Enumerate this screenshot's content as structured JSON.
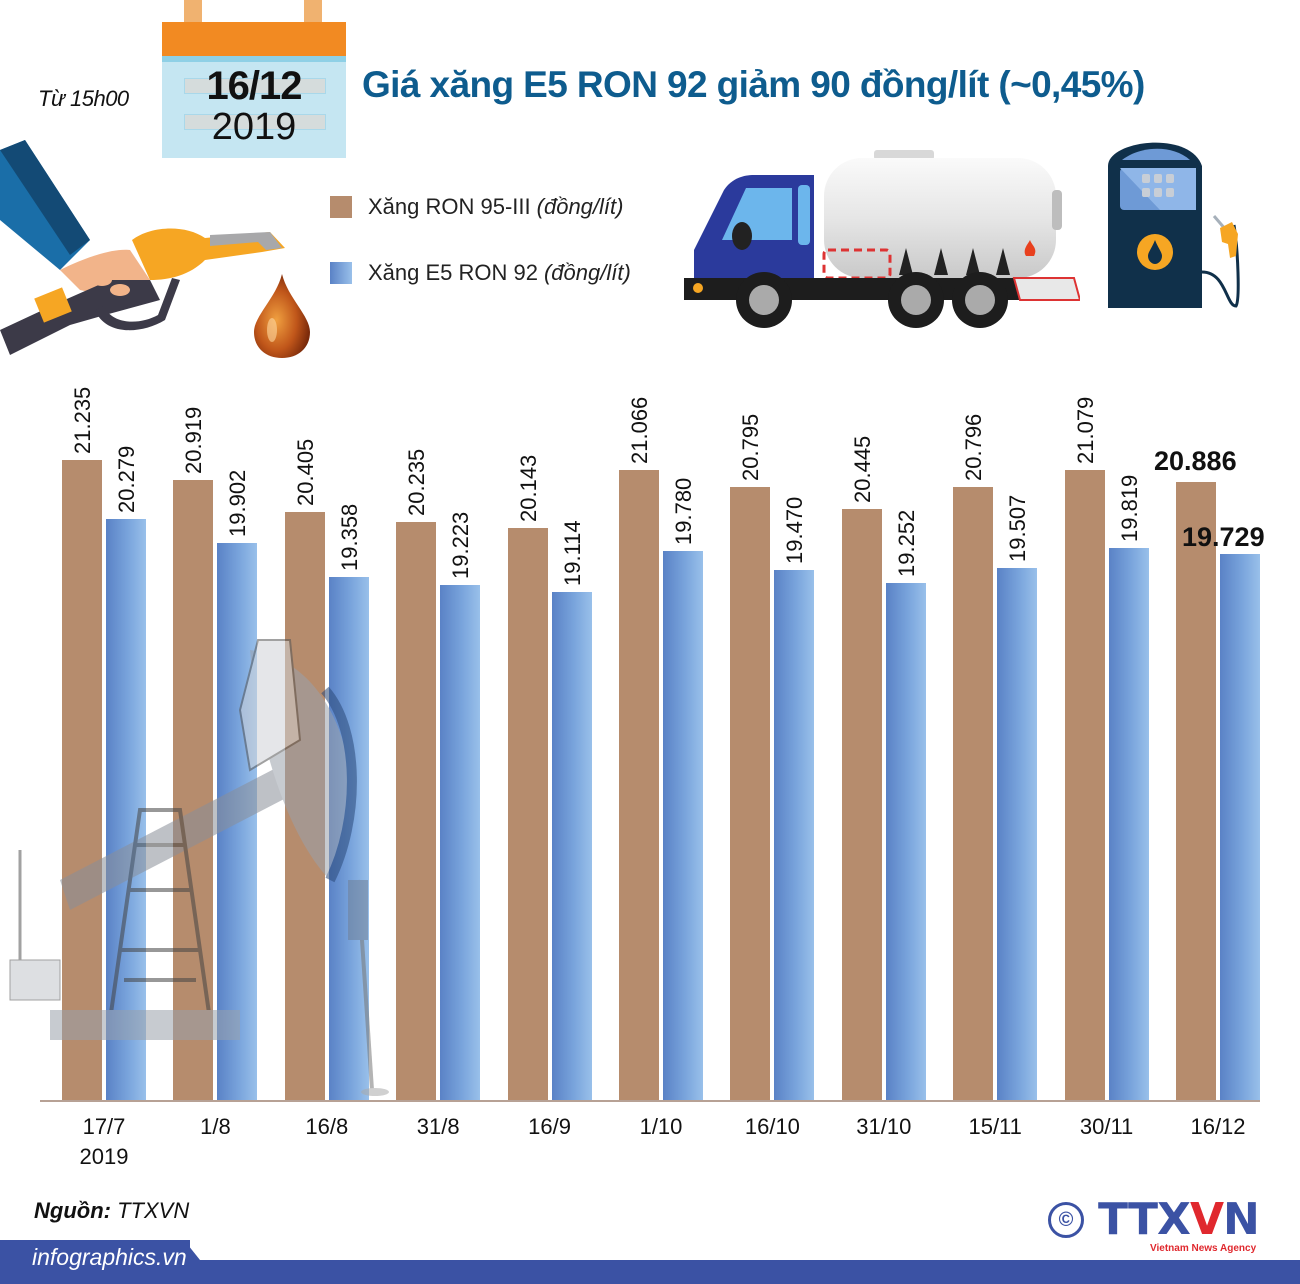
{
  "header": {
    "from_time": "Từ 15h00",
    "calendar_day": "16/12",
    "calendar_year": "2019",
    "title": "Giá xăng E5 RON 92 giảm 90 đồng/lít (~0,45%)"
  },
  "legend": {
    "items": [
      {
        "label": "Xăng RON 95-III",
        "unit": "(đồng/lít)",
        "color": "#b68c6d"
      },
      {
        "label": "Xăng E5 RON 92",
        "unit": "(đồng/lít)",
        "color": "#79a4dc"
      }
    ]
  },
  "icons": {
    "hand_nozzle": "fuel-nozzle-hand-icon",
    "drop": "oil-drop-icon",
    "truck": "tanker-truck-icon",
    "pump": "gas-pump-icon",
    "pumpjack": "oil-pumpjack-icon"
  },
  "chart_data": {
    "type": "bar",
    "title": "Giá xăng E5 RON 92 giảm 90 đồng/lít (~0,45%)",
    "xlabel": "",
    "ylabel": "đồng/lít",
    "categories": [
      "17/7 2019",
      "1/8",
      "16/8",
      "31/8",
      "16/9",
      "1/10",
      "16/10",
      "31/10",
      "15/11",
      "30/11",
      "16/12"
    ],
    "category_lines": [
      [
        "17/7",
        "2019"
      ],
      [
        "1/8"
      ],
      [
        "16/8"
      ],
      [
        "31/8"
      ],
      [
        "16/9"
      ],
      [
        "1/10"
      ],
      [
        "16/10"
      ],
      [
        "31/10"
      ],
      [
        "15/11"
      ],
      [
        "30/11"
      ],
      [
        "16/12"
      ]
    ],
    "series": [
      {
        "name": "Xăng RON 95-III (đồng/lít)",
        "color": "#b68c6d",
        "values": [
          21235,
          20919,
          20405,
          20235,
          20143,
          21066,
          20795,
          20445,
          20796,
          21079,
          20886
        ],
        "labels": [
          "21.235",
          "20.919",
          "20.405",
          "20.235",
          "20.143",
          "21.066",
          "20.795",
          "20.445",
          "20.796",
          "21.079",
          "20.886"
        ]
      },
      {
        "name": "Xăng E5 RON 92 (đồng/lít)",
        "color": "#79a4dc",
        "values": [
          20279,
          19902,
          19358,
          19223,
          19114,
          19780,
          19470,
          19252,
          19507,
          19819,
          19729
        ],
        "labels": [
          "20.279",
          "19.902",
          "19.358",
          "19.223",
          "19.114",
          "19.780",
          "19.470",
          "19.252",
          "19.507",
          "19.819",
          "19.729"
        ]
      }
    ],
    "axis_base": 10960,
    "grid": false,
    "legend_position": "top"
  },
  "footer": {
    "source_label": "Nguồn:",
    "source_value": "TTXVN",
    "site": "infographics.vn",
    "copyright": "©",
    "logo_main": "TTX",
    "logo_v": "V",
    "logo_n": "N",
    "logo_sub": "Vietnam News Agency"
  }
}
